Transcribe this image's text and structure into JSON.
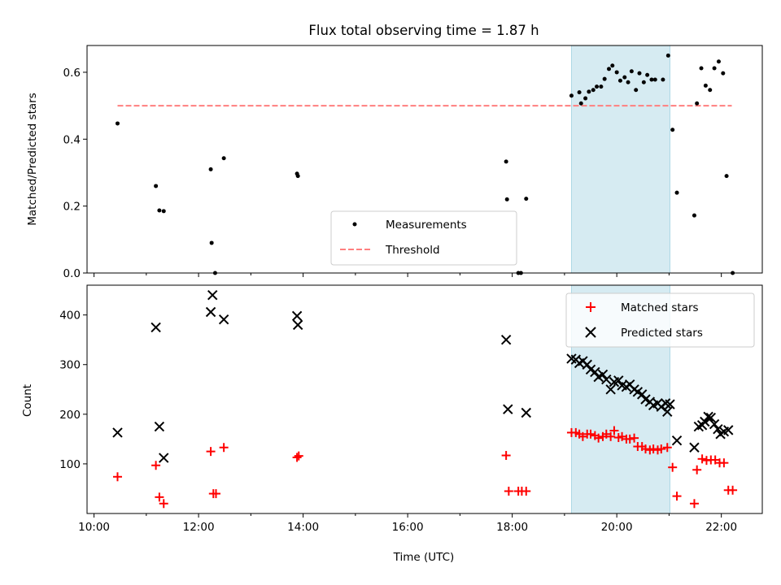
{
  "chart_data": {
    "title": "Flux total observing time = 1.87 h",
    "colors": {
      "measurements": "#000000",
      "threshold": "#ff7f7f",
      "matched": "#ff0000",
      "predicted": "#000000",
      "span": "#add8e6"
    },
    "xlabel": "Time (UTC)",
    "x_ticks": [
      "10:00",
      "12:00",
      "14:00",
      "16:00",
      "18:00",
      "20:00",
      "22:00"
    ],
    "xlim": [
      "09:52",
      "22:47"
    ],
    "highlight_span": [
      "19:08",
      "21:01"
    ],
    "panels": [
      {
        "type": "scatter",
        "ylabel": "Matched/Predicted stars",
        "ylim": [
          0,
          0.68
        ],
        "y_ticks": [
          "0.0",
          "0.2",
          "0.4",
          "0.6"
        ],
        "legend": [
          "Measurements",
          "Threshold"
        ],
        "threshold": {
          "name": "Threshold",
          "x": [
            "10:27",
            "22:12"
          ],
          "y": 0.5
        },
        "series": [
          {
            "name": "Measurements",
            "marker": "dot",
            "points": [
              [
                "10:27",
                0.447
              ],
              [
                "11:11",
                0.26
              ],
              [
                "11:15",
                0.187
              ],
              [
                "11:20",
                0.185
              ],
              [
                "12:14",
                0.31
              ],
              [
                "12:15",
                0.09
              ],
              [
                "12:19",
                0.0
              ],
              [
                "12:29",
                0.343
              ],
              [
                "13:53",
                0.297
              ],
              [
                "13:54",
                0.29
              ],
              [
                "17:53",
                0.333
              ],
              [
                "17:54",
                0.22
              ],
              [
                "18:07",
                0.0
              ],
              [
                "18:10",
                0.0
              ],
              [
                "18:16",
                0.222
              ],
              [
                "19:08",
                0.53
              ],
              [
                "19:17",
                0.54
              ],
              [
                "19:19",
                0.507
              ],
              [
                "19:24",
                0.522
              ],
              [
                "19:28",
                0.542
              ],
              [
                "19:33",
                0.547
              ],
              [
                "19:37",
                0.557
              ],
              [
                "19:42",
                0.557
              ],
              [
                "19:46",
                0.58
              ],
              [
                "19:51",
                0.61
              ],
              [
                "19:55",
                0.62
              ],
              [
                "20:00",
                0.6
              ],
              [
                "20:04",
                0.575
              ],
              [
                "20:09",
                0.585
              ],
              [
                "20:13",
                0.57
              ],
              [
                "20:17",
                0.603
              ],
              [
                "20:22",
                0.547
              ],
              [
                "20:26",
                0.597
              ],
              [
                "20:31",
                0.57
              ],
              [
                "20:35",
                0.592
              ],
              [
                "20:40",
                0.578
              ],
              [
                "20:44",
                0.578
              ],
              [
                "20:53",
                0.578
              ],
              [
                "20:59",
                0.65
              ],
              [
                "21:04",
                0.428
              ],
              [
                "21:09",
                0.24
              ],
              [
                "21:29",
                0.172
              ],
              [
                "21:32",
                0.507
              ],
              [
                "21:37",
                0.612
              ],
              [
                "21:42",
                0.56
              ],
              [
                "21:47",
                0.547
              ],
              [
                "21:52",
                0.612
              ],
              [
                "21:57",
                0.632
              ],
              [
                "22:02",
                0.597
              ],
              [
                "22:06",
                0.29
              ],
              [
                "22:13",
                0.0
              ]
            ]
          }
        ]
      },
      {
        "type": "scatter",
        "ylabel": "Count",
        "ylim": [
          0,
          460
        ],
        "y_ticks": [
          "100",
          "200",
          "300",
          "400"
        ],
        "legend": [
          "Matched stars",
          "Predicted stars"
        ],
        "series": [
          {
            "name": "Matched stars",
            "marker": "plus",
            "points": [
              [
                "10:27",
                74
              ],
              [
                "11:11",
                97
              ],
              [
                "11:15",
                33
              ],
              [
                "11:20",
                20
              ],
              [
                "12:14",
                125
              ],
              [
                "12:17",
                40
              ],
              [
                "12:20",
                40
              ],
              [
                "12:29",
                133
              ],
              [
                "13:53",
                113
              ],
              [
                "13:55",
                116
              ],
              [
                "17:53",
                117
              ],
              [
                "17:56",
                45
              ],
              [
                "18:07",
                45
              ],
              [
                "18:11",
                45
              ],
              [
                "18:16",
                45
              ],
              [
                "19:08",
                163
              ],
              [
                "19:13",
                163
              ],
              [
                "19:17",
                160
              ],
              [
                "19:21",
                155
              ],
              [
                "19:26",
                160
              ],
              [
                "19:30",
                160
              ],
              [
                "19:35",
                157
              ],
              [
                "19:39",
                152
              ],
              [
                "19:44",
                155
              ],
              [
                "19:48",
                160
              ],
              [
                "19:53",
                155
              ],
              [
                "19:57",
                167
              ],
              [
                "20:02",
                153
              ],
              [
                "20:06",
                155
              ],
              [
                "20:11",
                150
              ],
              [
                "20:15",
                150
              ],
              [
                "20:20",
                152
              ],
              [
                "20:24",
                135
              ],
              [
                "20:29",
                135
              ],
              [
                "20:33",
                130
              ],
              [
                "20:38",
                128
              ],
              [
                "20:42",
                130
              ],
              [
                "20:47",
                128
              ],
              [
                "20:51",
                130
              ],
              [
                "20:58",
                133
              ],
              [
                "21:04",
                93
              ],
              [
                "21:09",
                35
              ],
              [
                "21:29",
                20
              ],
              [
                "21:32",
                88
              ],
              [
                "21:38",
                110
              ],
              [
                "21:43",
                107
              ],
              [
                "21:48",
                108
              ],
              [
                "21:53",
                108
              ],
              [
                "21:58",
                102
              ],
              [
                "22:03",
                102
              ],
              [
                "22:08",
                47
              ],
              [
                "22:13",
                47
              ]
            ]
          },
          {
            "name": "Predicted stars",
            "marker": "x",
            "points": [
              [
                "10:27",
                163
              ],
              [
                "11:11",
                375
              ],
              [
                "11:15",
                175
              ],
              [
                "11:20",
                112
              ],
              [
                "12:14",
                406
              ],
              [
                "12:16",
                440
              ],
              [
                "12:29",
                391
              ],
              [
                "13:53",
                398
              ],
              [
                "13:54",
                380
              ],
              [
                "17:53",
                350
              ],
              [
                "17:55",
                210
              ],
              [
                "18:16",
                203
              ],
              [
                "19:08",
                312
              ],
              [
                "19:13",
                310
              ],
              [
                "19:17",
                303
              ],
              [
                "19:21",
                307
              ],
              [
                "19:26",
                300
              ],
              [
                "19:30",
                290
              ],
              [
                "19:35",
                285
              ],
              [
                "19:39",
                275
              ],
              [
                "19:44",
                280
              ],
              [
                "19:48",
                270
              ],
              [
                "19:53",
                250
              ],
              [
                "19:57",
                265
              ],
              [
                "20:02",
                268
              ],
              [
                "20:06",
                258
              ],
              [
                "20:11",
                255
              ],
              [
                "20:15",
                260
              ],
              [
                "20:20",
                250
              ],
              [
                "20:24",
                245
              ],
              [
                "20:29",
                240
              ],
              [
                "20:33",
                230
              ],
              [
                "20:38",
                225
              ],
              [
                "20:42",
                218
              ],
              [
                "20:47",
                222
              ],
              [
                "20:51",
                215
              ],
              [
                "20:56",
                222
              ],
              [
                "20:58",
                205
              ],
              [
                "21:01",
                220
              ],
              [
                "21:09",
                147
              ],
              [
                "21:29",
                133
              ],
              [
                "21:34",
                175
              ],
              [
                "21:38",
                178
              ],
              [
                "21:41",
                185
              ],
              [
                "21:45",
                195
              ],
              [
                "21:48",
                193
              ],
              [
                "21:52",
                180
              ],
              [
                "21:56",
                170
              ],
              [
                "21:59",
                160
              ],
              [
                "22:03",
                165
              ],
              [
                "22:08",
                168
              ]
            ]
          }
        ]
      }
    ]
  }
}
